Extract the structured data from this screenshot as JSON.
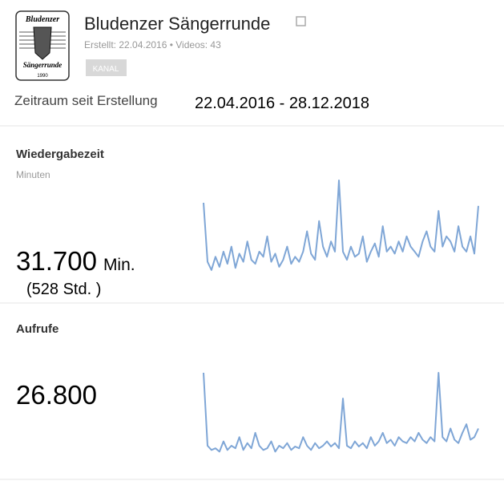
{
  "logo": {
    "top": "Bludenzer",
    "bottom": "Sängerrunde",
    "year": "1990"
  },
  "header": {
    "title": "Bludenzer Sängerrunde",
    "meta": "Erstellt: 22.04.2016 • Videos: 43",
    "badge": "KANAL"
  },
  "period": {
    "label": "Zeitraum seit Erstellung",
    "range": "22.04.2016 - 28.12.2018"
  },
  "cards": [
    {
      "title": "Wiedergabezeit",
      "subtitle": "Minuten",
      "total": "31.700",
      "unit": "Min.",
      "note": "(528 Std. )",
      "sparkline": {
        "color": "#7fa6d6",
        "values": [
          78,
          20,
          12,
          25,
          15,
          30,
          18,
          35,
          14,
          28,
          20,
          40,
          22,
          18,
          30,
          25,
          45,
          20,
          28,
          15,
          22,
          35,
          18,
          25,
          20,
          30,
          50,
          28,
          22,
          60,
          35,
          25,
          40,
          30,
          100,
          30,
          22,
          35,
          25,
          28,
          45,
          20,
          30,
          38,
          25,
          55,
          30,
          35,
          28,
          40,
          30,
          45,
          35,
          30,
          25,
          40,
          50,
          35,
          30,
          70,
          35,
          45,
          40,
          30,
          55,
          35,
          30,
          45,
          28,
          75
        ]
      }
    },
    {
      "title": "Aufrufe",
      "total": "26.800",
      "sparkline": {
        "color": "#7fa6d6",
        "values": [
          100,
          15,
          10,
          12,
          8,
          20,
          10,
          15,
          12,
          25,
          10,
          18,
          12,
          30,
          15,
          10,
          12,
          20,
          8,
          15,
          12,
          18,
          10,
          14,
          12,
          25,
          15,
          10,
          18,
          12,
          15,
          20,
          14,
          18,
          12,
          70,
          15,
          12,
          20,
          14,
          18,
          12,
          25,
          15,
          20,
          30,
          18,
          22,
          15,
          25,
          20,
          18,
          25,
          20,
          30,
          22,
          18,
          25,
          20,
          100,
          25,
          20,
          35,
          22,
          18,
          30,
          40,
          22,
          25,
          35
        ]
      }
    }
  ]
}
